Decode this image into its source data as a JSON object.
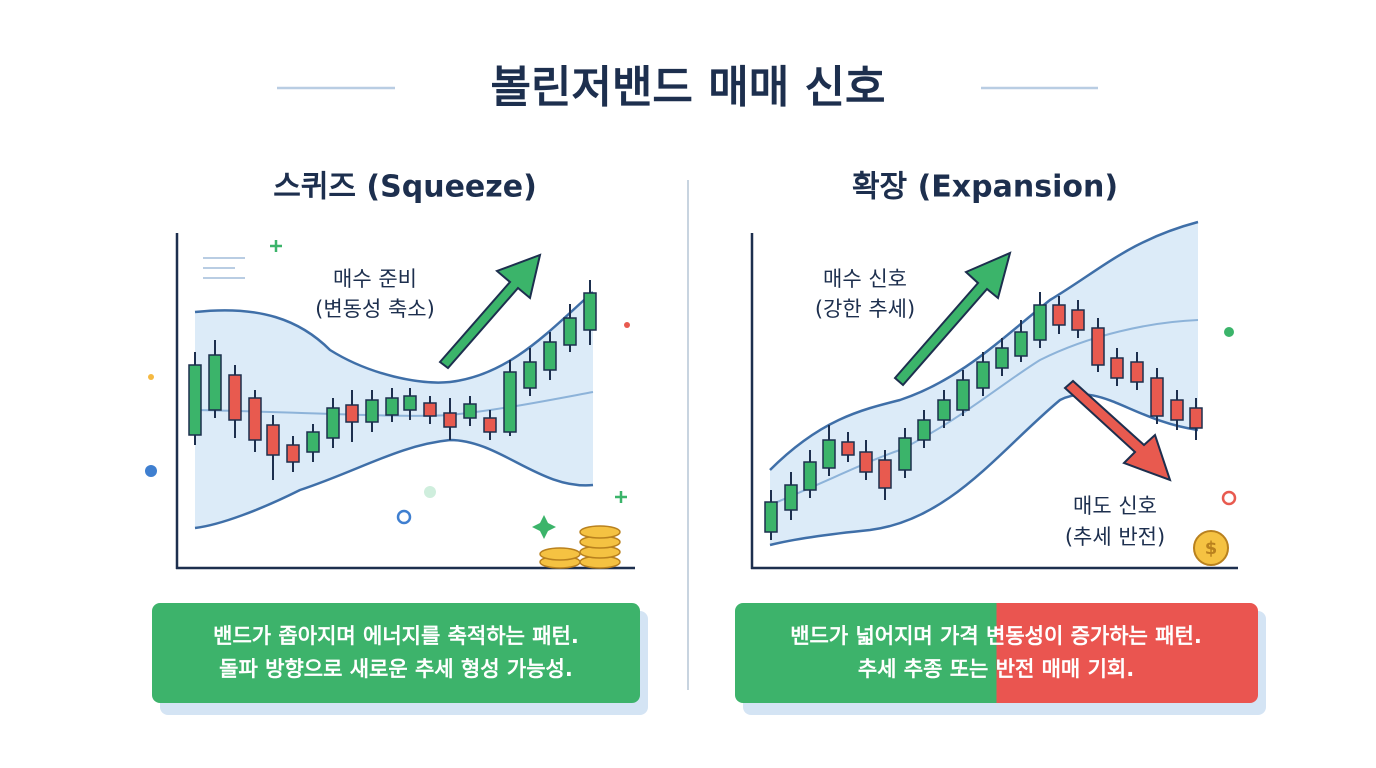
{
  "title": "볼린저밴드 매매 신호",
  "squeeze": {
    "heading": "스퀴즈 (Squeeze)",
    "annotation": [
      "매수 준비",
      "(변동성 축소)"
    ],
    "caption": [
      "밴드가 좁아지며 에너지를 축적하는 패턴.",
      "돌파 방향으로 새로운 추세 형성 가능성."
    ]
  },
  "expansion": {
    "heading": "확장 (Expansion)",
    "buy_annotation": [
      "매수 신호",
      "(강한 추세)"
    ],
    "sell_annotation": [
      "매도 신호",
      "(추세 반전)"
    ],
    "caption": [
      "밴드가 넓어지며 가격 변동성이 증가하는 패턴.",
      "추세 추종 또는 반전 매매 기회."
    ]
  }
}
